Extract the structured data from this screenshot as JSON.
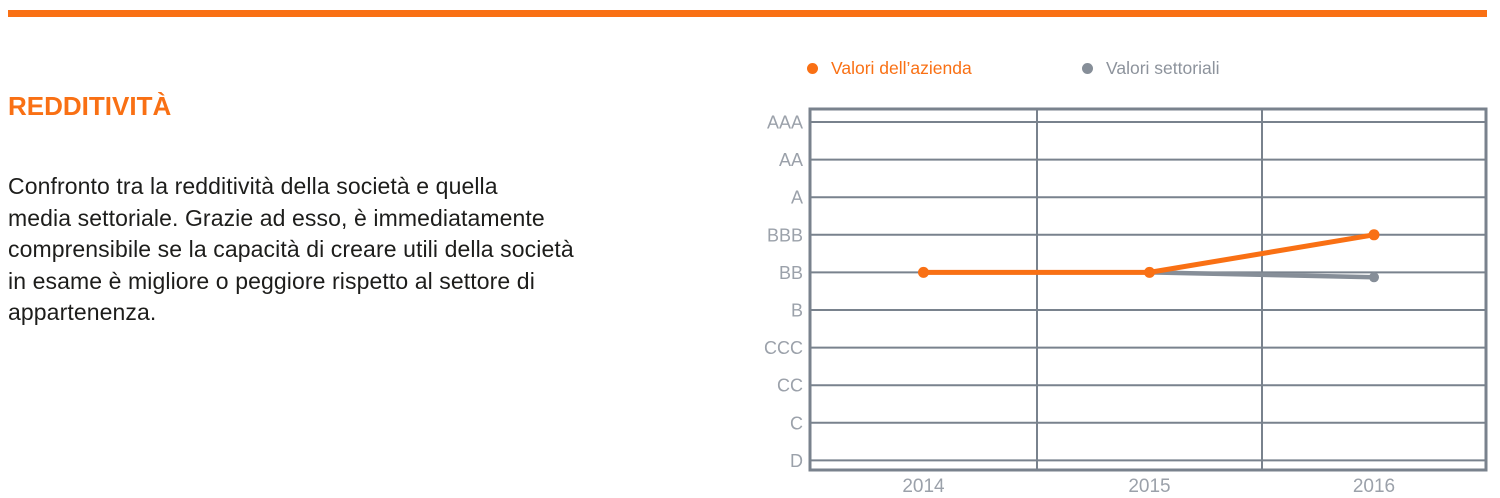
{
  "page": {
    "background": "#FFFFFF",
    "top_bar_color": "#F97014"
  },
  "left_panel": {
    "heading": "REDDITIVITÀ",
    "heading_color": "#F97014",
    "text_color": "#1D1D1B",
    "paragraph_lines": [
      "Confronto tra la redditività della società e quella",
      "media settoriale. Grazie ad esso, è immediatamente",
      "comprensibile se la capacità di creare utili della società",
      "in esame è migliore o peggiore rispetto al settore di",
      "appartenenza."
    ]
  },
  "legend": {
    "items": [
      {
        "label": "Valori dell’azienda",
        "color": "#F97014",
        "marker": "dot"
      },
      {
        "label": "Valori settoriali",
        "color": "#868E98",
        "marker": "dot"
      }
    ]
  },
  "chart_data": {
    "type": "line",
    "title": "",
    "x": [
      "2014",
      "2015",
      "2016"
    ],
    "y_axis_labels_top_to_bottom": [
      "AAA",
      "AA",
      "A",
      "BBB",
      "BB",
      "B",
      "CCC",
      "CC",
      "C",
      "D"
    ],
    "y_scale": "ordinal rating scale, numeric mapping D=0 … AAA=9",
    "ylim": [
      0,
      9
    ],
    "series": [
      {
        "name": "Valori dell’azienda",
        "color": "#F97014",
        "ratings": [
          "BB",
          "BB",
          "BBB"
        ],
        "values": [
          5,
          5,
          6
        ]
      },
      {
        "name": "Valori settoriali",
        "color": "#868E98",
        "ratings": [
          "BB",
          "BB",
          "BB (appena sotto)"
        ],
        "values": [
          5,
          5,
          4.87
        ]
      }
    ],
    "grid": {
      "horizontal_lines": true,
      "vertical_lines": "category band boundaries"
    },
    "legend_position": "top",
    "colors": {
      "grid_and_border": "#79828D",
      "axis_labels": "#9BA1AA"
    }
  }
}
